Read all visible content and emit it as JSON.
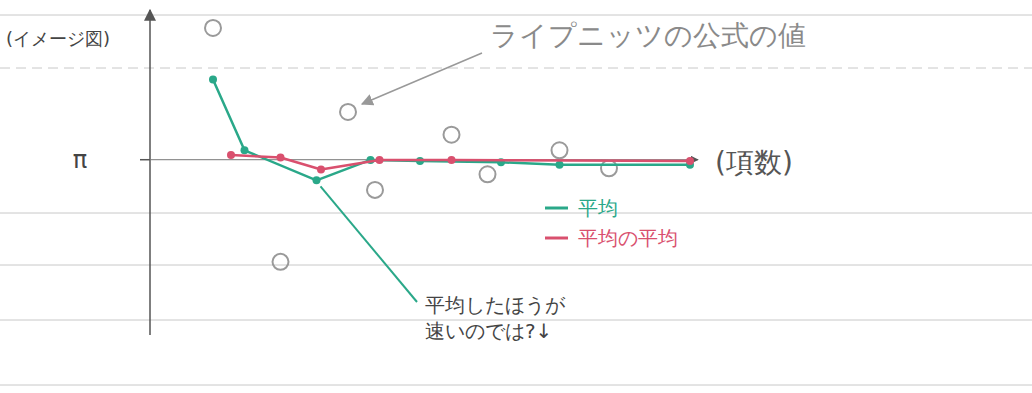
{
  "chart_data": {
    "type": "line",
    "y_label": "(イメージ図)",
    "x_label": "(項数)",
    "xlim": [
      0,
      12
    ],
    "xticks": [],
    "ylim": [
      1.68,
      4.39
    ],
    "yticks": [
      {
        "value": 3.14159,
        "label": "π"
      }
    ],
    "tick_labels": "y",
    "legend": "right",
    "series": [
      {
        "name": "ライプニッツの公式の値",
        "color": "#9a9a9a",
        "marker": "circle",
        "line_style": "none",
        "x": [
          1.4,
          2.9,
          4.4,
          5.0,
          6.7,
          7.5,
          9.1,
          10.2
        ],
        "values": [
          4.24,
          2.29,
          3.54,
          2.89,
          3.35,
          3.02,
          3.22,
          3.07
        ]
      },
      {
        "name": "平均",
        "color": "#2aa889",
        "marker": "dot",
        "line_style": "solid",
        "x": [
          1.4,
          2.1,
          3.7,
          4.9,
          6.0,
          7.8,
          9.1,
          12
        ],
        "values": [
          3.81,
          3.22,
          2.97,
          3.14,
          3.13,
          3.12,
          3.1,
          3.1
        ]
      },
      {
        "name": "平均の平均",
        "color": "#d9506e",
        "marker": "dot",
        "line_style": "solid",
        "x": [
          1.8,
          2.9,
          3.8,
          5.1,
          6.7,
          12
        ],
        "values": [
          3.18,
          3.16,
          3.06,
          3.14,
          3.14,
          3.13
        ]
      }
    ],
    "annotations": [
      "平均したほうが",
      "速いのでは?↓"
    ]
  }
}
